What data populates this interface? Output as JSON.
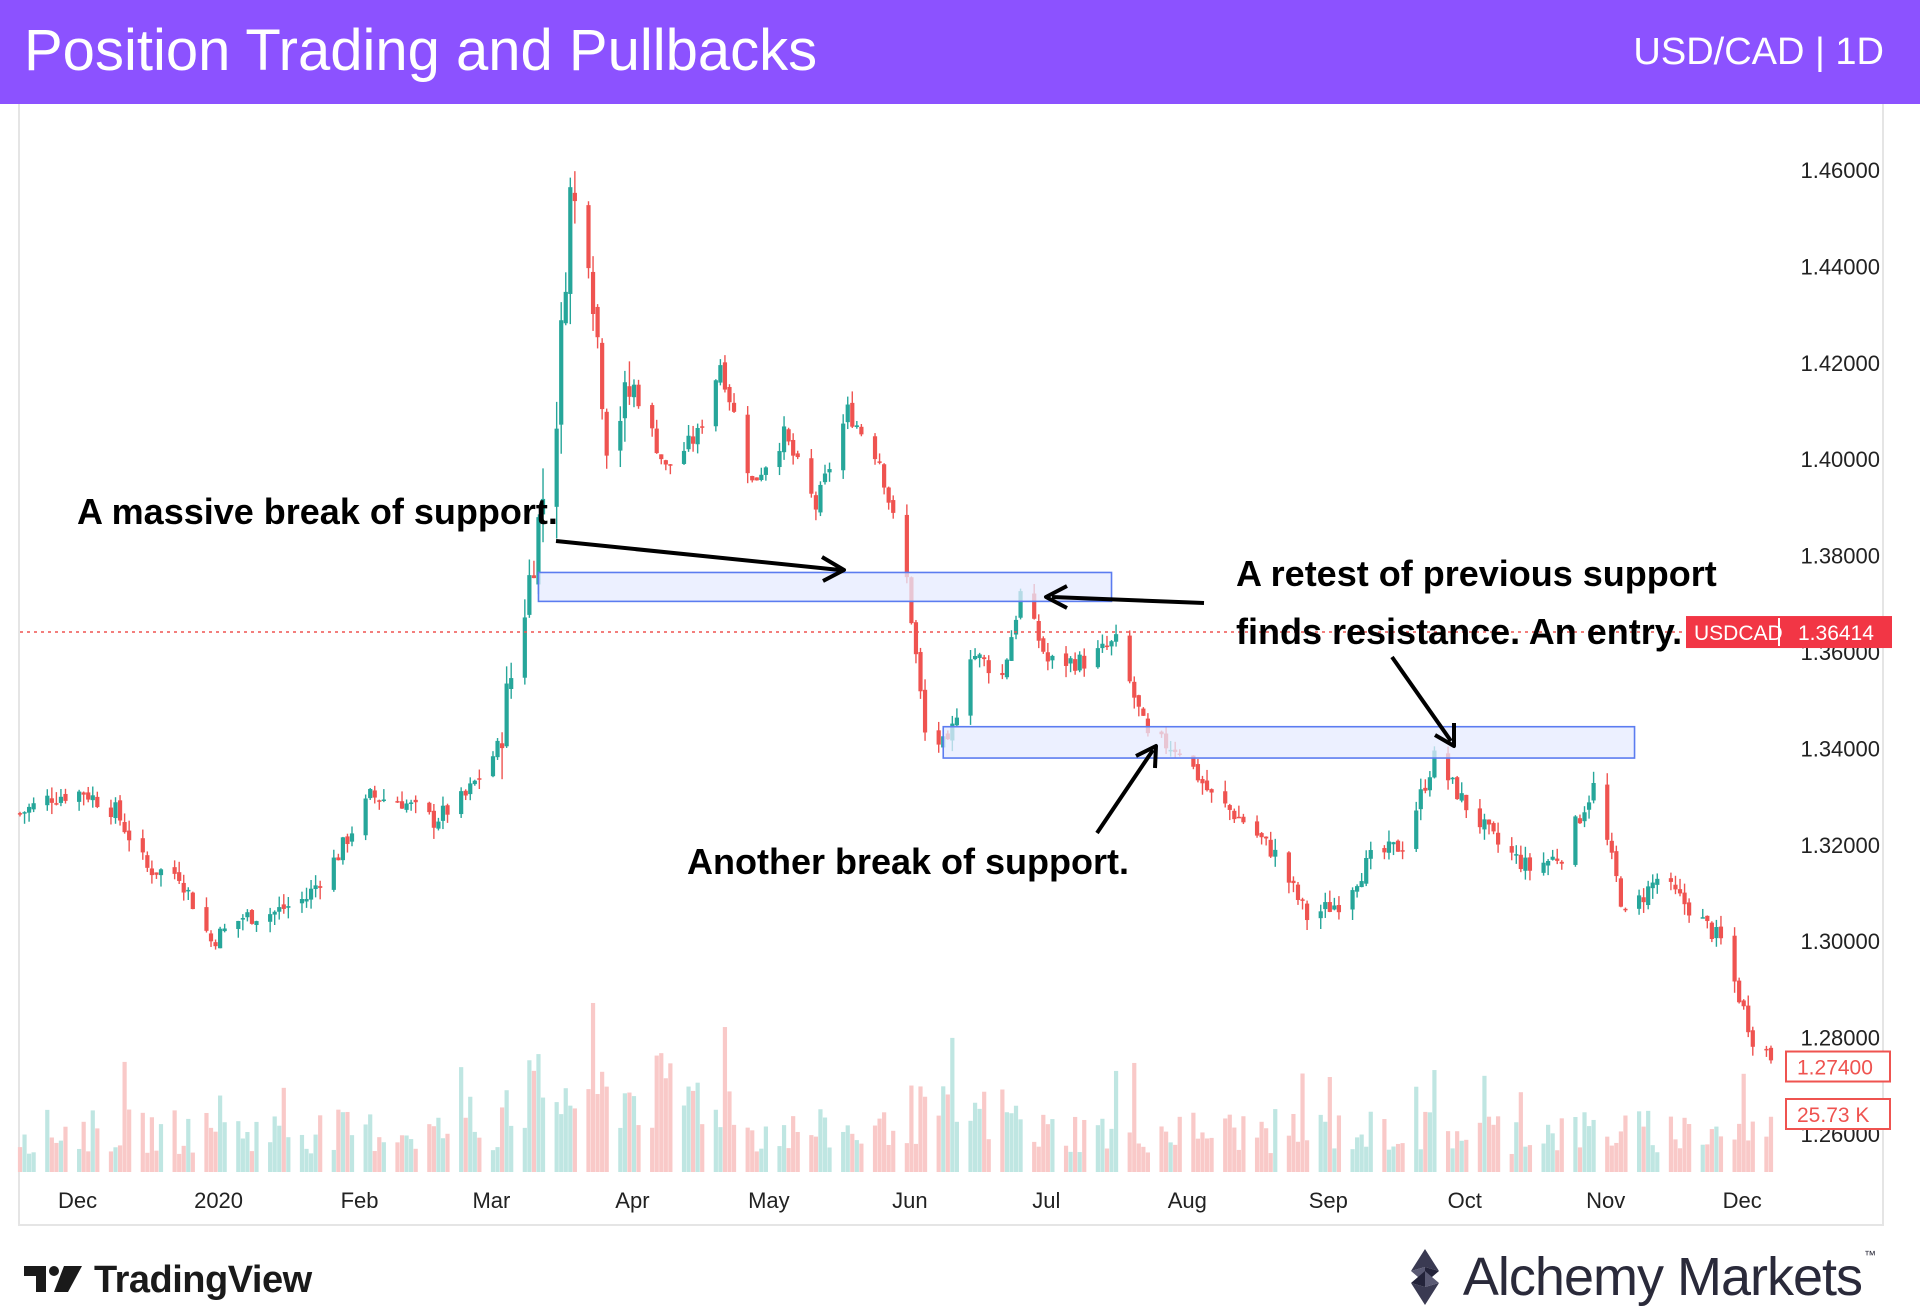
{
  "header": {
    "title": "Position Trading and Pullbacks",
    "symbol_timeframe": "USD/CAD | 1D"
  },
  "colors": {
    "header_bg": "#8c52ff",
    "bull": "#26a69a",
    "bear": "#ef5350",
    "zone_fill": "#e6ebff",
    "zone_stroke": "#5b7cf0",
    "price_line": "#ef5350"
  },
  "chart_data": {
    "type": "candlestick",
    "symbol": "USDCAD",
    "timeframe": "1D",
    "y_axis": {
      "ticks": [
        "1.46000",
        "1.44000",
        "1.42000",
        "1.40000",
        "1.38000",
        "1.36000",
        "1.34000",
        "1.32000",
        "1.30000",
        "1.28000",
        "1.26000"
      ],
      "range": [
        1.256,
        1.468
      ]
    },
    "x_axis": {
      "labels": [
        "Dec",
        "2020",
        "Feb",
        "Mar",
        "Apr",
        "May",
        "Jun",
        "Jul",
        "Aug",
        "Sep",
        "Oct",
        "Nov",
        "Dec"
      ]
    },
    "close_path": [
      {
        "date": "2019-11-19",
        "close": 1.3265
      },
      {
        "date": "2019-11-26",
        "close": 1.33
      },
      {
        "date": "2019-12-03",
        "close": 1.331
      },
      {
        "date": "2019-12-10",
        "close": 1.327
      },
      {
        "date": "2019-12-17",
        "close": 1.315
      },
      {
        "date": "2019-12-24",
        "close": 1.314
      },
      {
        "date": "2019-12-31",
        "close": 1.3
      },
      {
        "date": "2020-01-07",
        "close": 1.305
      },
      {
        "date": "2020-01-14",
        "close": 1.306
      },
      {
        "date": "2020-01-21",
        "close": 1.309
      },
      {
        "date": "2020-01-28",
        "close": 1.318
      },
      {
        "date": "2020-02-04",
        "close": 1.33
      },
      {
        "date": "2020-02-11",
        "close": 1.329
      },
      {
        "date": "2020-02-18",
        "close": 1.325
      },
      {
        "date": "2020-02-25",
        "close": 1.33
      },
      {
        "date": "2020-03-03",
        "close": 1.34
      },
      {
        "date": "2020-03-10",
        "close": 1.375
      },
      {
        "date": "2020-03-16",
        "close": 1.41
      },
      {
        "date": "2020-03-19",
        "close": 1.455
      },
      {
        "date": "2020-03-23",
        "close": 1.445
      },
      {
        "date": "2020-03-27",
        "close": 1.405
      },
      {
        "date": "2020-04-02",
        "close": 1.415
      },
      {
        "date": "2020-04-09",
        "close": 1.398
      },
      {
        "date": "2020-04-16",
        "close": 1.405
      },
      {
        "date": "2020-04-21",
        "close": 1.42
      },
      {
        "date": "2020-04-28",
        "close": 1.395
      },
      {
        "date": "2020-05-05",
        "close": 1.405
      },
      {
        "date": "2020-05-12",
        "close": 1.39
      },
      {
        "date": "2020-05-19",
        "close": 1.41
      },
      {
        "date": "2020-05-26",
        "close": 1.4
      },
      {
        "date": "2020-06-01",
        "close": 1.375
      },
      {
        "date": "2020-06-05",
        "close": 1.343
      },
      {
        "date": "2020-06-10",
        "close": 1.34
      },
      {
        "date": "2020-06-15",
        "close": 1.36
      },
      {
        "date": "2020-06-22",
        "close": 1.355
      },
      {
        "date": "2020-06-26",
        "close": 1.372
      },
      {
        "date": "2020-07-02",
        "close": 1.358
      },
      {
        "date": "2020-07-10",
        "close": 1.358
      },
      {
        "date": "2020-07-17",
        "close": 1.362
      },
      {
        "date": "2020-07-24",
        "close": 1.342
      },
      {
        "date": "2020-07-31",
        "close": 1.34
      },
      {
        "date": "2020-08-07",
        "close": 1.33
      },
      {
        "date": "2020-08-14",
        "close": 1.325
      },
      {
        "date": "2020-08-21",
        "close": 1.318
      },
      {
        "date": "2020-08-28",
        "close": 1.305
      },
      {
        "date": "2020-09-04",
        "close": 1.308
      },
      {
        "date": "2020-09-11",
        "close": 1.317
      },
      {
        "date": "2020-09-18",
        "close": 1.32
      },
      {
        "date": "2020-09-25",
        "close": 1.338
      },
      {
        "date": "2020-10-02",
        "close": 1.328
      },
      {
        "date": "2020-10-09",
        "close": 1.32
      },
      {
        "date": "2020-10-16",
        "close": 1.315
      },
      {
        "date": "2020-10-23",
        "close": 1.318
      },
      {
        "date": "2020-10-30",
        "close": 1.332
      },
      {
        "date": "2020-11-06",
        "close": 1.305
      },
      {
        "date": "2020-11-13",
        "close": 1.313
      },
      {
        "date": "2020-11-20",
        "close": 1.307
      },
      {
        "date": "2020-11-27",
        "close": 1.3
      },
      {
        "date": "2020-12-04",
        "close": 1.28
      },
      {
        "date": "2020-12-08",
        "close": 1.276
      }
    ],
    "zones": [
      {
        "from_date": "2020-03-12",
        "to_date": "2020-07-16",
        "low": 1.3705,
        "high": 1.3765
      },
      {
        "from_date": "2020-06-09",
        "to_date": "2020-11-08",
        "low": 1.338,
        "high": 1.3445
      }
    ],
    "current_price": {
      "label": "USDCAD",
      "value": "1.36414",
      "price": 1.36414
    },
    "last_price_label": {
      "value": "1.27400",
      "price": 1.274
    },
    "volume_label": "25.73 K",
    "annotations": [
      {
        "text": "A massive break of support."
      },
      {
        "text": "A retest of previous support"
      },
      {
        "text": "finds resistance. An entry."
      },
      {
        "text": "Another break of support."
      }
    ]
  },
  "footer": {
    "tradingview_label": "TradingView",
    "brand_label": "Alchemy Markets",
    "brand_tm": "™"
  }
}
